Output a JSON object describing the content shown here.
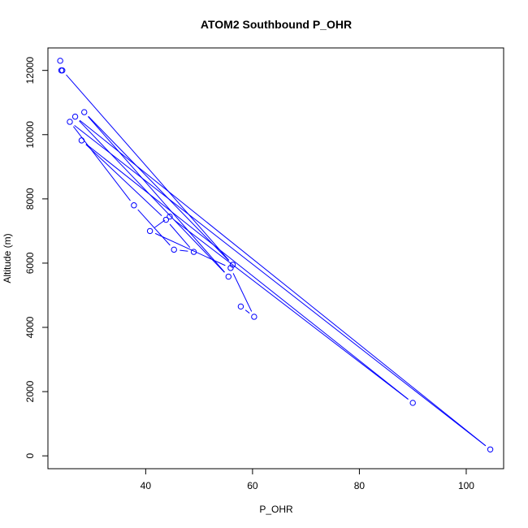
{
  "chart_data": {
    "type": "line",
    "title": "ATOM2 Southbound P_OHR",
    "xlabel": "P_OHR",
    "ylabel": "Altitude (m)",
    "xlim": [
      21.7,
      107
    ],
    "ylim": [
      -400,
      12700
    ],
    "x_ticks": [
      40,
      60,
      80,
      100
    ],
    "y_ticks": [
      0,
      2000,
      4000,
      6000,
      8000,
      10000,
      12000
    ],
    "grid": false,
    "series": [
      {
        "color": "#0000ff",
        "marker": "open-circle",
        "x": [
          24.0,
          24.2,
          24.4,
          56.3,
          28.5,
          55.5,
          26.8,
          104.5,
          25.8,
          37.8,
          45.3,
          49.0,
          43.8,
          28.0,
          90.0,
          44.5,
          40.8,
          55.9,
          60.3,
          57.8
        ],
        "y": [
          12300,
          12000,
          12000,
          5950,
          10700,
          5580,
          10560,
          200,
          10400,
          7800,
          6420,
          6350,
          7350,
          9820,
          1650,
          7450,
          7000,
          5850,
          4330,
          4650
        ]
      }
    ]
  }
}
